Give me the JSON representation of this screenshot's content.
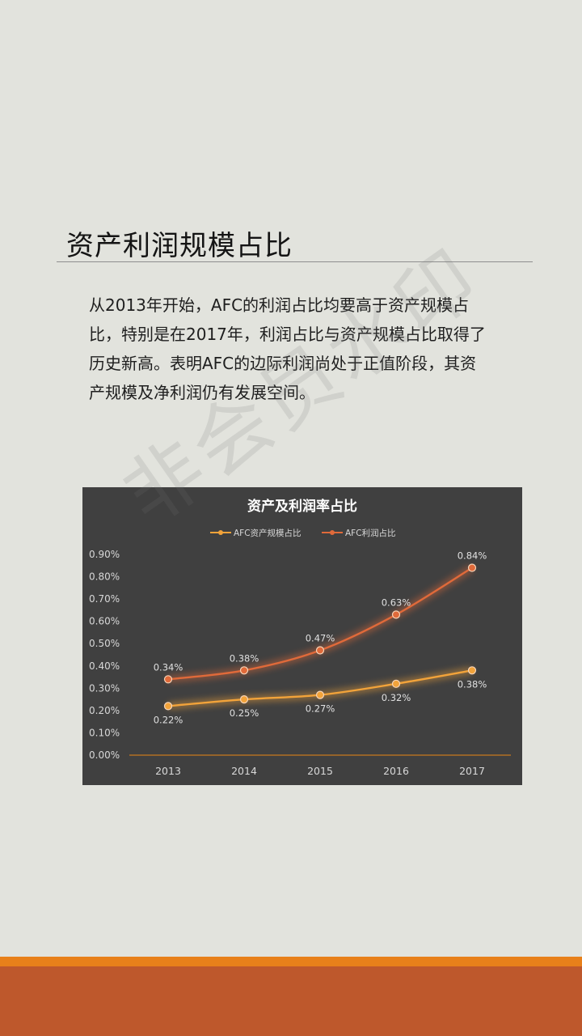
{
  "page": {
    "title": "资产利润规模占比",
    "paragraph_lines": [
      "从2013年开始，AFC的利润占比均要高于资产规模占",
      "比，特别是在2017年，利润占比与资产规模占比取得了",
      "历史新高。表明AFC的边际利润尚处于正值阶段，其资",
      "产规模及净利润仍有发展空间。"
    ],
    "watermark": "非会员水印"
  },
  "colors": {
    "background": "#e2e3dd",
    "chart_background": "#404040",
    "asset_series": "#f2a33a",
    "profit_series": "#e06a3a",
    "band_light": "#e8801a",
    "band_dark": "#be582c"
  },
  "chart_data": {
    "type": "line",
    "title": "资产及利润率占比",
    "xlabel": "",
    "ylabel": "",
    "categories": [
      "2013",
      "2014",
      "2015",
      "2016",
      "2017"
    ],
    "ylim": [
      0,
      0.9
    ],
    "y_ticks": [
      "0.00%",
      "0.10%",
      "0.20%",
      "0.30%",
      "0.40%",
      "0.50%",
      "0.60%",
      "0.70%",
      "0.80%",
      "0.90%"
    ],
    "legend_position": "top",
    "grid": false,
    "series": [
      {
        "name": "AFC资产规模占比",
        "values": [
          0.22,
          0.25,
          0.27,
          0.32,
          0.38
        ],
        "labels": [
          "0.22%",
          "0.25%",
          "0.27%",
          "0.32%",
          "0.38%"
        ],
        "label_position": "below"
      },
      {
        "name": "AFC利润占比",
        "values": [
          0.34,
          0.38,
          0.47,
          0.63,
          0.84
        ],
        "labels": [
          "0.34%",
          "0.38%",
          "0.47%",
          "0.63%",
          "0.84%"
        ],
        "label_position": "above"
      }
    ]
  }
}
